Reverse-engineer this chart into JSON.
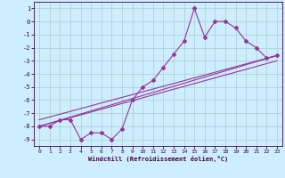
{
  "xlabel": "Windchill (Refroidissement éolien,°C)",
  "background_color": "#cceeff",
  "grid_color": "#aacccc",
  "line_color": "#993399",
  "xlim": [
    -0.5,
    23.5
  ],
  "ylim": [
    -9.5,
    1.5
  ],
  "xticks": [
    0,
    1,
    2,
    3,
    4,
    5,
    6,
    7,
    8,
    9,
    10,
    11,
    12,
    13,
    14,
    15,
    16,
    17,
    18,
    19,
    20,
    21,
    22,
    23
  ],
  "yticks": [
    1,
    0,
    -1,
    -2,
    -3,
    -4,
    -5,
    -6,
    -7,
    -8,
    -9
  ],
  "series1_x": [
    0,
    1,
    2,
    3,
    4,
    5,
    6,
    7,
    8,
    9,
    10,
    11,
    12,
    13,
    14,
    15,
    16,
    17,
    18,
    19,
    20,
    21,
    22,
    23
  ],
  "series1_y": [
    -8,
    -8,
    -7.5,
    -7.5,
    -9,
    -8.5,
    -8.5,
    -9,
    -8.2,
    -6,
    -5,
    -4.5,
    -3.5,
    -2.5,
    -1.5,
    1,
    -1.2,
    0,
    0,
    -0.5,
    -1.5,
    -2,
    -2.8,
    -2.6
  ],
  "series2_x": [
    0,
    23
  ],
  "series2_y": [
    -8,
    -2.6
  ],
  "series3_x": [
    0,
    23
  ],
  "series3_y": [
    -7.5,
    -2.6
  ],
  "series4_x": [
    0,
    23
  ],
  "series4_y": [
    -8,
    -3.0
  ]
}
